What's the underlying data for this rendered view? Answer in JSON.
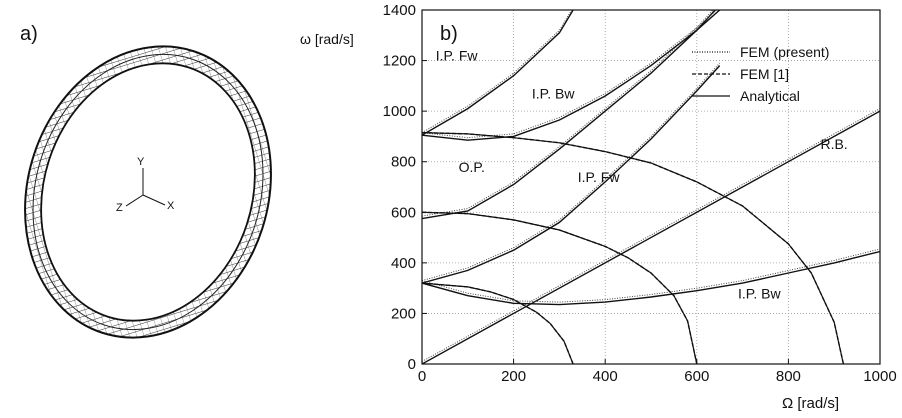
{
  "panel_a": {
    "label": "a)",
    "axes": {
      "y": "Y",
      "x": "X",
      "z": "Z"
    }
  },
  "chart_data": {
    "type": "line",
    "panel_label": "b)",
    "ylabel": "ω [rad/s]",
    "xlabel": "Ω [rad/s]",
    "xlim": [
      0,
      1000
    ],
    "ylim": [
      0,
      1400
    ],
    "xticks": [
      0,
      200,
      400,
      600,
      800,
      1000
    ],
    "yticks": [
      0,
      200,
      400,
      600,
      800,
      1000,
      1200,
      1400
    ],
    "grid": "dotted",
    "legend": {
      "placement": "top-right",
      "entries": [
        {
          "name": "FEM (present)",
          "style": "dotted"
        },
        {
          "name": "FEM [1]",
          "style": "dashed"
        },
        {
          "name": "Analytical",
          "style": "solid"
        }
      ]
    },
    "annotations": [
      {
        "text": "I.P. Fw",
        "x": 30,
        "y": 1200
      },
      {
        "text": "I.P. Bw",
        "x": 240,
        "y": 1050
      },
      {
        "text": "O.P.",
        "x": 80,
        "y": 760
      },
      {
        "text": "I.P. Fw",
        "x": 340,
        "y": 720
      },
      {
        "text": "R.B.",
        "x": 870,
        "y": 850
      },
      {
        "text": "I.P. Bw",
        "x": 690,
        "y": 260
      }
    ],
    "series": [
      {
        "role": "I.P. Fw upper",
        "x": [
          0,
          100,
          200,
          300,
          330
        ],
        "y": [
          905,
          1010,
          1140,
          1310,
          1400
        ]
      },
      {
        "role": "I.P. Bw upper",
        "x": [
          0,
          100,
          200,
          300,
          400,
          500,
          600,
          640
        ],
        "y": [
          905,
          885,
          900,
          965,
          1060,
          1180,
          1320,
          1400
        ]
      },
      {
        "role": "O.P.",
        "x": [
          0,
          100,
          200,
          300,
          400,
          500,
          600,
          650
        ],
        "y": [
          575,
          605,
          710,
          850,
          1000,
          1150,
          1320,
          1400
        ]
      },
      {
        "role": "I.P. Fw lower",
        "x": [
          0,
          100,
          200,
          300,
          400,
          500,
          600,
          650
        ],
        "y": [
          320,
          370,
          450,
          560,
          720,
          890,
          1080,
          1180
        ]
      },
      {
        "role": "R.B.",
        "x": [
          0,
          1000
        ],
        "y": [
          0,
          1000
        ]
      },
      {
        "role": "I.P. Bw lower",
        "x": [
          0,
          100,
          200,
          300,
          400,
          500,
          600,
          700,
          800,
          900,
          1000
        ],
        "y": [
          320,
          270,
          240,
          235,
          245,
          265,
          290,
          320,
          360,
          400,
          445
        ]
      },
      {
        "role": "decreasing 900",
        "x": [
          0,
          100,
          200,
          300,
          400,
          500,
          600,
          700,
          800,
          850,
          900,
          920
        ],
        "y": [
          915,
          910,
          895,
          875,
          840,
          795,
          720,
          625,
          475,
          360,
          165,
          0
        ]
      },
      {
        "role": "decreasing 600",
        "x": [
          0,
          100,
          200,
          300,
          400,
          450,
          500,
          550,
          580,
          600
        ],
        "y": [
          600,
          595,
          570,
          530,
          465,
          420,
          360,
          270,
          170,
          0
        ]
      },
      {
        "role": "decreasing 320",
        "x": [
          0,
          100,
          150,
          200,
          250,
          280,
          310,
          330
        ],
        "y": [
          320,
          305,
          285,
          255,
          205,
          160,
          90,
          0
        ]
      }
    ]
  }
}
